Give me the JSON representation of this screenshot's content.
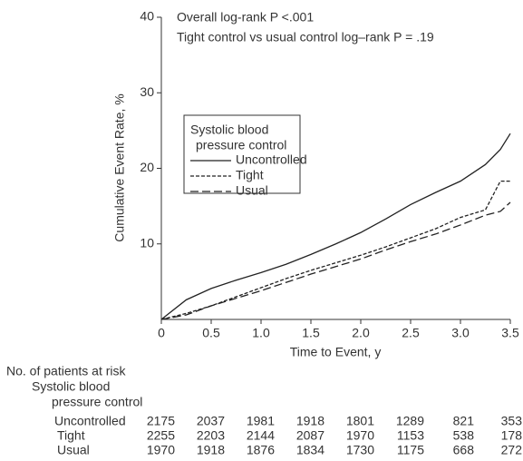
{
  "chart_data": {
    "type": "line",
    "annotations": [
      "Overall log-rank P <.001",
      "Tight control vs usual control log–rank P = .19"
    ],
    "x_label": "Time to Event, y",
    "y_label": "Cumulative Event Rate, %",
    "x": [
      0,
      0.25,
      0.5,
      0.75,
      1,
      1.25,
      1.5,
      1.75,
      2,
      2.25,
      2.5,
      2.75,
      3,
      3.25,
      3.4,
      3.5
    ],
    "series": [
      {
        "name": "Uncontrolled",
        "color": "#222222",
        "line_style": "solid",
        "values": [
          0,
          2.6,
          4.1,
          5.2,
          6.2,
          7.3,
          8.6,
          10,
          11.5,
          13.3,
          15.2,
          16.8,
          18.3,
          20.5,
          22.5,
          24.6
        ]
      },
      {
        "name": "Tight",
        "color": "#222222",
        "line_style": "short-dash",
        "values": [
          0,
          0.8,
          1.8,
          3,
          4.2,
          5.4,
          6.5,
          7.5,
          8.5,
          9.6,
          10.8,
          12,
          13.5,
          14.5,
          18.3,
          18.3
        ]
      },
      {
        "name": "Usual",
        "color": "#222222",
        "line_style": "long-dash",
        "values": [
          0,
          0.6,
          1.8,
          2.8,
          3.8,
          4.9,
          6,
          7,
          8,
          9.2,
          10.3,
          11.3,
          12.5,
          13.8,
          14.3,
          15.5
        ]
      }
    ],
    "legend_title": [
      "Systolic blood",
      "pressure control"
    ],
    "xlim": [
      0,
      3.5
    ],
    "xticks": [
      0,
      0.5,
      {
        "value": 1,
        "label": "1.0"
      },
      1.5,
      {
        "value": 2,
        "label": "2.0"
      },
      2.5,
      {
        "value": 3,
        "label": "3.0"
      },
      3.5
    ],
    "ylim": [
      0,
      40
    ],
    "yticks": [
      10,
      20,
      30,
      40
    ],
    "risk_table": {
      "title_lines": [
        "No. of patients at risk",
        "Systolic blood",
        "pressure control"
      ],
      "rows": [
        {
          "name": "Uncontrolled",
          "values": [
            2175,
            2037,
            1981,
            1918,
            1801,
            1289,
            821,
            353
          ]
        },
        {
          "name": "Tight",
          "values": [
            2255,
            2203,
            2144,
            2087,
            1970,
            1153,
            538,
            178
          ]
        },
        {
          "name": "Usual",
          "values": [
            1970,
            1918,
            1876,
            1834,
            1730,
            1175,
            668,
            272
          ]
        }
      ]
    }
  }
}
